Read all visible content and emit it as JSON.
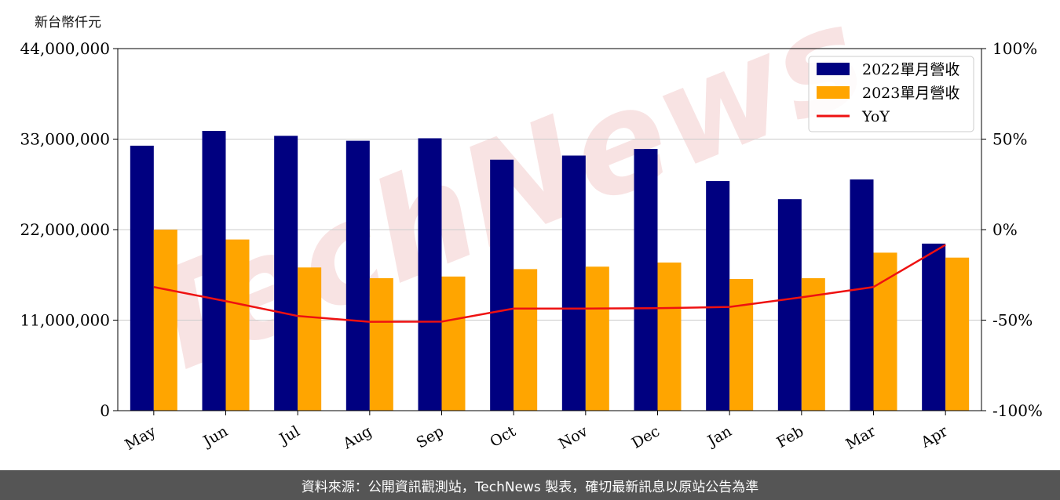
{
  "unit_label": "新台幣仟元",
  "watermark": "TechNews",
  "footer": "資料來源：公開資訊觀測站，TechNews 製表，確切最新訊息以原站公告為準",
  "colors": {
    "series_2022": "#000080",
    "series_2023": "#FFA500",
    "yoy": "#EE1111",
    "grid": "#CCCCCC"
  },
  "chart_data": {
    "type": "bar",
    "categories": [
      "May",
      "Jun",
      "Jul",
      "Aug",
      "Sep",
      "Oct",
      "Nov",
      "Dec",
      "Jan",
      "Feb",
      "Mar",
      "Apr"
    ],
    "series": [
      {
        "name": "2022單月營收",
        "type": "bar",
        "axis": "left",
        "values": [
          32200000,
          34000000,
          33400000,
          32800000,
          33100000,
          30500000,
          31000000,
          31800000,
          27900000,
          25700000,
          28100000,
          20300000
        ]
      },
      {
        "name": "2023單月營收",
        "type": "bar",
        "axis": "left",
        "values": [
          22000000,
          20800000,
          17400000,
          16100000,
          16300000,
          17200000,
          17500000,
          18000000,
          16000000,
          16100000,
          19200000,
          18600000
        ]
      }
    ],
    "line_series": {
      "name": "YoY",
      "type": "line",
      "axis": "right",
      "values": [
        -31.7,
        -39.5,
        -47.7,
        -50.9,
        -50.8,
        -43.6,
        -43.6,
        -43.4,
        -42.7,
        -37.4,
        -31.7,
        -8.4
      ]
    },
    "left_axis": {
      "ylim": [
        0,
        44000000
      ],
      "ticks": [
        "0",
        "11,000,000",
        "22,000,000",
        "33,000,000",
        "44,000,000"
      ]
    },
    "right_axis": {
      "ylim": [
        -100,
        100
      ],
      "ticks": [
        "-100%",
        "-50%",
        "0%",
        "50%",
        "100%"
      ]
    },
    "grid": true,
    "legend_position": "top-right"
  }
}
